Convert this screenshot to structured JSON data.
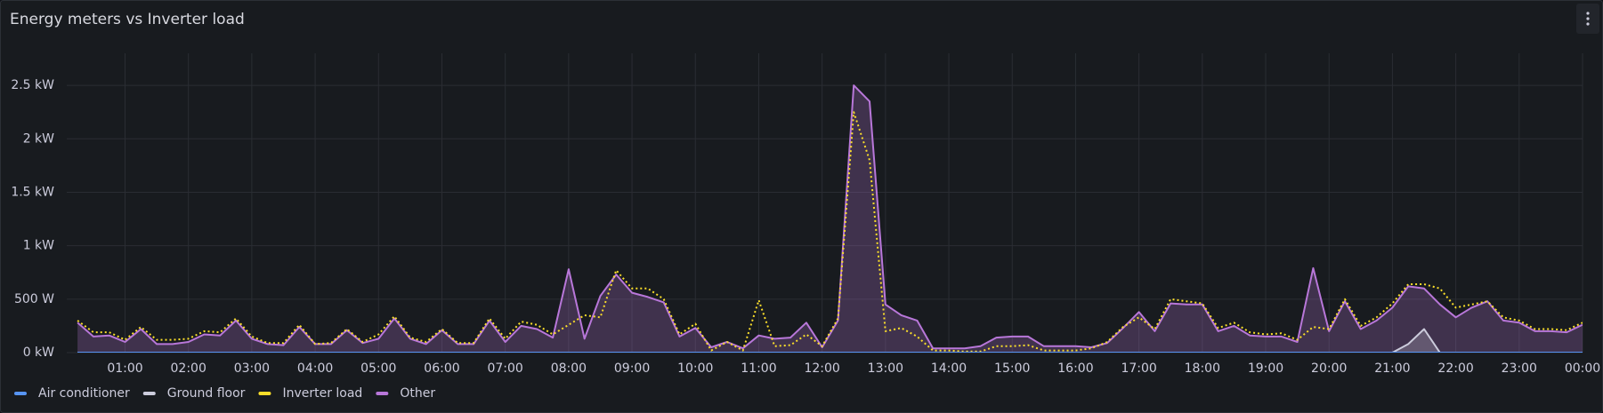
{
  "chart_data": {
    "type": "line",
    "title": "Energy meters vs Inverter load",
    "x": [
      0.25,
      0.5,
      0.75,
      1,
      1.25,
      1.5,
      1.75,
      2,
      2.25,
      2.5,
      2.75,
      3,
      3.25,
      3.5,
      3.75,
      4,
      4.25,
      4.5,
      4.75,
      5,
      5.25,
      5.5,
      5.75,
      6,
      6.25,
      6.5,
      6.75,
      7,
      7.25,
      7.5,
      7.75,
      8,
      8.25,
      8.5,
      8.75,
      9,
      9.25,
      9.5,
      9.75,
      10,
      10.25,
      10.5,
      10.75,
      11,
      11.25,
      11.5,
      11.75,
      12,
      12.25,
      12.5,
      12.75,
      13,
      13.25,
      13.5,
      13.75,
      14,
      14.25,
      14.5,
      14.75,
      15,
      15.25,
      15.5,
      15.75,
      16,
      16.25,
      16.5,
      16.75,
      17,
      17.25,
      17.5,
      17.75,
      18,
      18.25,
      18.5,
      18.75,
      19,
      19.25,
      19.5,
      19.75,
      20,
      20.25,
      20.5,
      20.75,
      21,
      21.25,
      21.5,
      21.75,
      22,
      22.25,
      22.5,
      22.75,
      23,
      23.25,
      23.5,
      23.75,
      24
    ],
    "series": [
      {
        "name": "Air conditioner",
        "color": "#5794f2",
        "values": [
          0,
          0,
          0,
          0,
          0,
          0,
          0,
          0,
          0,
          0,
          0,
          0,
          0,
          0,
          0,
          0,
          0,
          0,
          0,
          0,
          0,
          0,
          0,
          0,
          0,
          0,
          0,
          0,
          0,
          0,
          0,
          0,
          0,
          0,
          0,
          0,
          0,
          0,
          0,
          0,
          0,
          0,
          0,
          0,
          0,
          0,
          0,
          0,
          0,
          0,
          0,
          0,
          0,
          0,
          0,
          0,
          0,
          0,
          0,
          0,
          0,
          0,
          0,
          0,
          0,
          0,
          0,
          0,
          0,
          0,
          0,
          0,
          0,
          0,
          0,
          0,
          0,
          0,
          0,
          0,
          0,
          0,
          0,
          0,
          0,
          0,
          0,
          0,
          0,
          0,
          0,
          0,
          0,
          0,
          0,
          0
        ]
      },
      {
        "name": "Ground floor",
        "color": "#ccccdc",
        "fill": true,
        "values": [
          0,
          0,
          0,
          0,
          0,
          0,
          0,
          0,
          0,
          0,
          0,
          0,
          0,
          0,
          0,
          0,
          0,
          0,
          0,
          0,
          0,
          0,
          0,
          0,
          0,
          0,
          0,
          0,
          0,
          0,
          0,
          0,
          0,
          0,
          0,
          0,
          0,
          0,
          0,
          0,
          0,
          0,
          0,
          0,
          0,
          0,
          0,
          0,
          0,
          0,
          0,
          0,
          0,
          0,
          0,
          0,
          0,
          0,
          0,
          0,
          0,
          0,
          0,
          0,
          0,
          0,
          0,
          0,
          0,
          0,
          0,
          0,
          0,
          0,
          0,
          0,
          0,
          0,
          0,
          0,
          0,
          0,
          0,
          0,
          80,
          220,
          0,
          0,
          0,
          0,
          0,
          0,
          0,
          0,
          0,
          0
        ]
      },
      {
        "name": "Inverter load",
        "color": "#fade2a",
        "dashed": true,
        "values": [
          300,
          190,
          190,
          120,
          240,
          120,
          120,
          130,
          200,
          190,
          320,
          150,
          90,
          90,
          260,
          80,
          90,
          220,
          100,
          170,
          340,
          140,
          100,
          220,
          90,
          90,
          320,
          130,
          290,
          260,
          170,
          260,
          350,
          330,
          770,
          600,
          600,
          500,
          170,
          270,
          20,
          100,
          20,
          490,
          60,
          70,
          170,
          60,
          320,
          2250,
          1800,
          200,
          230,
          150,
          20,
          20,
          10,
          10,
          60,
          60,
          70,
          20,
          20,
          20,
          40,
          100,
          240,
          330,
          220,
          500,
          480,
          460,
          230,
          280,
          190,
          170,
          180,
          120,
          240,
          220,
          500,
          250,
          330,
          460,
          640,
          640,
          600,
          420,
          450,
          480,
          330,
          300,
          220,
          220,
          210,
          280
        ]
      },
      {
        "name": "Other",
        "color": "#b877d9",
        "fill": true,
        "values": [
          280,
          150,
          160,
          100,
          220,
          80,
          80,
          100,
          170,
          160,
          300,
          130,
          80,
          70,
          240,
          80,
          80,
          210,
          90,
          130,
          320,
          130,
          80,
          210,
          80,
          80,
          300,
          100,
          250,
          220,
          140,
          780,
          130,
          530,
          730,
          560,
          520,
          470,
          150,
          230,
          50,
          100,
          40,
          160,
          130,
          140,
          280,
          50,
          300,
          2500,
          2350,
          450,
          350,
          300,
          40,
          40,
          40,
          60,
          140,
          150,
          150,
          60,
          60,
          60,
          50,
          90,
          230,
          380,
          200,
          460,
          450,
          450,
          200,
          250,
          160,
          150,
          150,
          100,
          790,
          200,
          480,
          220,
          300,
          420,
          620,
          600,
          450,
          330,
          420,
          480,
          300,
          280,
          200,
          200,
          190,
          260
        ]
      }
    ],
    "xlim": [
      0.08,
      24
    ],
    "xticks": [
      {
        "value": 1,
        "label": "01:00"
      },
      {
        "value": 2,
        "label": "02:00"
      },
      {
        "value": 3,
        "label": "03:00"
      },
      {
        "value": 4,
        "label": "04:00"
      },
      {
        "value": 5,
        "label": "05:00"
      },
      {
        "value": 6,
        "label": "06:00"
      },
      {
        "value": 7,
        "label": "07:00"
      },
      {
        "value": 8,
        "label": "08:00"
      },
      {
        "value": 9,
        "label": "09:00"
      },
      {
        "value": 10,
        "label": "10:00"
      },
      {
        "value": 11,
        "label": "11:00"
      },
      {
        "value": 12,
        "label": "12:00"
      },
      {
        "value": 13,
        "label": "13:00"
      },
      {
        "value": 14,
        "label": "14:00"
      },
      {
        "value": 15,
        "label": "15:00"
      },
      {
        "value": 16,
        "label": "16:00"
      },
      {
        "value": 17,
        "label": "17:00"
      },
      {
        "value": 18,
        "label": "18:00"
      },
      {
        "value": 19,
        "label": "19:00"
      },
      {
        "value": 20,
        "label": "20:00"
      },
      {
        "value": 21,
        "label": "21:00"
      },
      {
        "value": 22,
        "label": "22:00"
      },
      {
        "value": 23,
        "label": "23:00"
      },
      {
        "value": 24,
        "label": "00:00"
      }
    ],
    "ylim": [
      0,
      2800
    ],
    "yticks": [
      {
        "value": 0,
        "label": "0 kW"
      },
      {
        "value": 500,
        "label": "500 W"
      },
      {
        "value": 1000,
        "label": "1 kW"
      },
      {
        "value": 1500,
        "label": "1.5 kW"
      },
      {
        "value": 2000,
        "label": "2 kW"
      },
      {
        "value": 2500,
        "label": "2.5 kW"
      }
    ],
    "grid": true,
    "legend": "bottom-left"
  }
}
